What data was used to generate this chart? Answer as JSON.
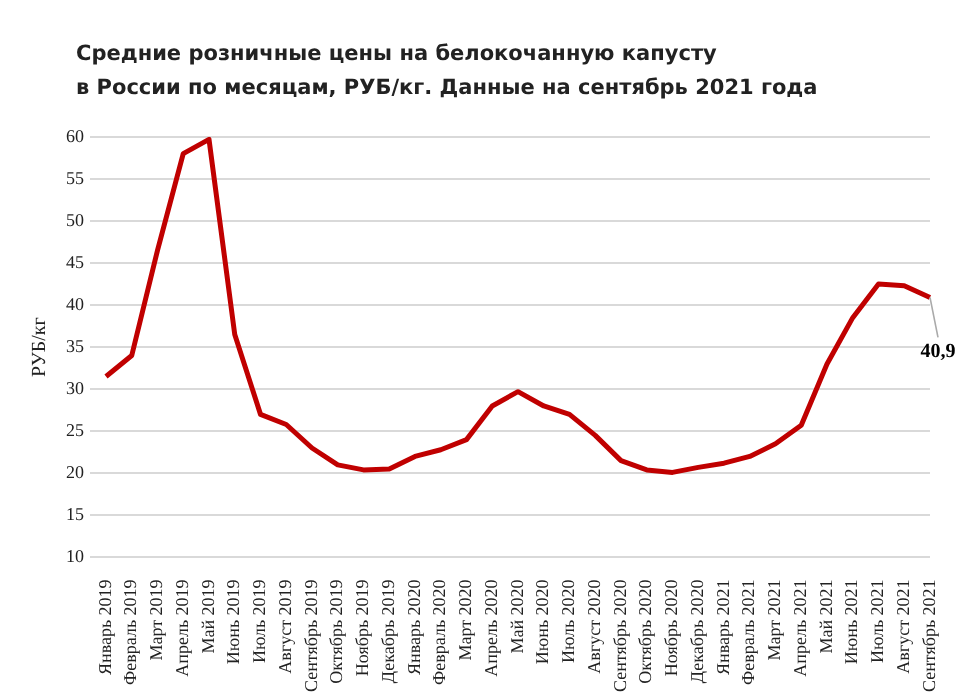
{
  "chart_data": {
    "type": "line",
    "title": "Средние розничные цены на белокочанную капусту\nв России по месяцам, РУБ/кг. Данные на сентябрь 2021 года",
    "ylabel": "РУБ/кг",
    "categories": [
      "Январь 2019",
      "Февраль 2019",
      "Март 2019",
      "Апрель 2019",
      "Май 2019",
      "Июнь 2019",
      "Июль 2019",
      "Август 2019",
      "Сентябрь 2019",
      "Октябрь 2019",
      "Ноябрь 2019",
      "Декабрь 2019",
      "Январь 2020",
      "Февраль 2020",
      "Март 2020",
      "Апрель 2020",
      "Май 2020",
      "Июнь 2020",
      "Июль 2020",
      "Август 2020",
      "Сентябрь 2020",
      "Октябрь 2020",
      "Ноябрь 2020",
      "Декабрь 2020",
      "Январь 2021",
      "Февраль 2021",
      "Март 2021",
      "Апрель 2021",
      "Май 2021",
      "Июнь 2021",
      "Июль 2021",
      "Август 2021",
      "Сентябрь 2021"
    ],
    "series": [
      {
        "color": "#c00000",
        "values": [
          31.5,
          34,
          46.5,
          58,
          59.7,
          36.5,
          27,
          25.8,
          23,
          21,
          20.4,
          20.5,
          22,
          22.8,
          24,
          28,
          29.7,
          28,
          27,
          24.5,
          21.5,
          20.4,
          20.1,
          20.7,
          21.2,
          22,
          23.5,
          25.7,
          33,
          38.5,
          42.5,
          42.3,
          40.9
        ]
      }
    ],
    "ylim": [
      10,
      60
    ],
    "yticks": [
      10,
      15,
      20,
      25,
      30,
      35,
      40,
      45,
      50,
      55,
      60
    ],
    "grid": "y",
    "legend": false,
    "marker": "none",
    "line_style": "solid",
    "annotations": [
      {
        "text": "40,9",
        "x": "Сентябрь 2021",
        "y": 40.9
      }
    ]
  }
}
